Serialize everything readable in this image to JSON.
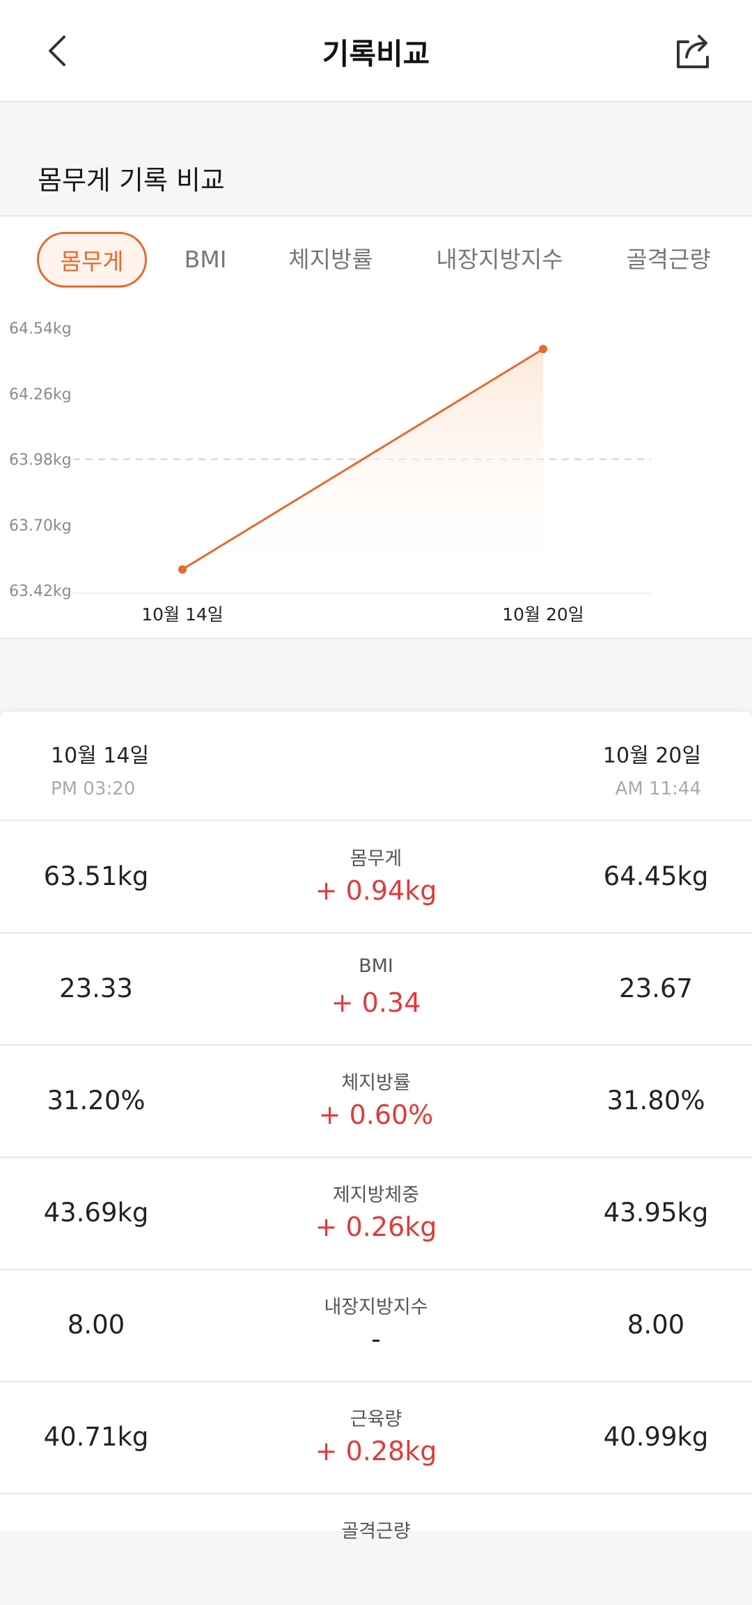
{
  "header": {
    "title": "기록비교"
  },
  "section": {
    "title": "몸무게 기록 비교"
  },
  "tabs": [
    {
      "label": "몸무게",
      "active": true
    },
    {
      "label": "BMI",
      "active": false
    },
    {
      "label": "체지방률",
      "active": false
    },
    {
      "label": "내장지방지수",
      "active": false
    },
    {
      "label": "골격근량",
      "active": false
    }
  ],
  "chart_data": {
    "type": "line",
    "x": [
      "10월 14일",
      "10월 20일"
    ],
    "series": [
      {
        "values": [
          63.51,
          64.45
        ]
      }
    ],
    "yticks": [
      "64.54kg",
      "64.26kg",
      "63.98kg",
      "63.70kg",
      "63.42kg"
    ],
    "ylim": [
      63.42,
      64.54
    ],
    "reference_line": 63.98,
    "color": "#e8692b"
  },
  "compare": {
    "left": {
      "date": "10월 14일",
      "time": "PM 03:20"
    },
    "right": {
      "date": "10월 20일",
      "time": "AM 11:44"
    },
    "rows": [
      {
        "label": "몸무게",
        "left": "63.51kg",
        "diff": "+ 0.94kg",
        "right": "64.45kg"
      },
      {
        "label": "BMI",
        "left": "23.33",
        "diff": "+ 0.34",
        "right": "23.67"
      },
      {
        "label": "체지방률",
        "left": "31.20%",
        "diff": "+ 0.60%",
        "right": "31.80%"
      },
      {
        "label": "제지방체중",
        "left": "43.69kg",
        "diff": "+ 0.26kg",
        "right": "43.95kg"
      },
      {
        "label": "내장지방지수",
        "left": "8.00",
        "diff": "-",
        "right": "8.00"
      },
      {
        "label": "근육량",
        "left": "40.71kg",
        "diff": "+ 0.28kg",
        "right": "40.99kg"
      },
      {
        "label": "골격근량",
        "left": "",
        "diff": "",
        "right": ""
      }
    ]
  }
}
